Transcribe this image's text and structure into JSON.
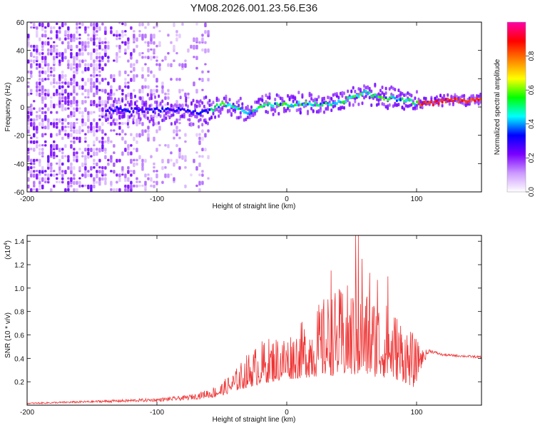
{
  "title": "YM08.2026.001.23.56.E36",
  "chart_data": [
    {
      "type": "heatmap",
      "xlabel": "Height of straight line (km)",
      "ylabel": "Frequency (Hz)",
      "xlim": [
        -200,
        150
      ],
      "ylim": [
        -60,
        60
      ],
      "xticks": [
        -200,
        -100,
        0,
        100
      ],
      "xtick_labels": [
        "-200",
        "-100",
        "0",
        "100"
      ],
      "yticks": [
        -60,
        -40,
        -20,
        0,
        20,
        40,
        60
      ],
      "ytick_labels": [
        "-60",
        "-40",
        "-20",
        "0",
        "20",
        "40",
        "60"
      ],
      "colorbar": {
        "label": "Normalized spectral amplitude",
        "range": [
          0,
          1
        ],
        "ticks": [
          0,
          0.2,
          0.4,
          0.6,
          0.8
        ],
        "tick_labels": [
          "0.0",
          "0.2",
          "0.4",
          "0.6",
          "0.8"
        ],
        "colors": [
          "#ffffff",
          "#cc99ff",
          "#7a00ff",
          "#0000ff",
          "#00ffff",
          "#00ff00",
          "#ffff00",
          "#ff8000",
          "#ff0000",
          "#ff00aa"
        ]
      },
      "ridge": {
        "x": [
          -130,
          -110,
          -90,
          -70,
          -60,
          -50,
          -40,
          -30,
          -20,
          -10,
          0,
          10,
          20,
          30,
          40,
          50,
          60,
          70,
          80,
          90,
          100,
          110,
          120,
          130,
          150
        ],
        "y": [
          -2,
          -3,
          -2,
          -4,
          -3,
          2,
          0,
          -5,
          0,
          1,
          1,
          2,
          2,
          1,
          3,
          6,
          10,
          6,
          6,
          4,
          2,
          2,
          4,
          4,
          4
        ]
      }
    },
    {
      "type": "line",
      "xlabel": "Height of straight line (km)",
      "ylabel": "SNR (10 * v/v)",
      "scale_label": "(x10",
      "scale_exponent": "4",
      "scale_close": ")",
      "xlim": [
        -200,
        150
      ],
      "ylim": [
        0,
        1.45
      ],
      "xticks": [
        -200,
        -100,
        0,
        100
      ],
      "xtick_labels": [
        "-200",
        "-100",
        "0",
        "100"
      ],
      "yticks": [
        0.2,
        0.4,
        0.6,
        0.8,
        1.0,
        1.2,
        1.4
      ],
      "ytick_labels": [
        "0.2",
        "0.4",
        "0.6",
        "0.8",
        "1.0",
        "1.2",
        "1.4"
      ],
      "color": "#ee3333",
      "envelope": {
        "x": [
          -200,
          -150,
          -100,
          -80,
          -70,
          -60,
          -50,
          -40,
          -30,
          -20,
          -10,
          0,
          10,
          20,
          30,
          40,
          50,
          60,
          70,
          80,
          90,
          98,
          105,
          110,
          120,
          150
        ],
        "base": [
          0.01,
          0.02,
          0.03,
          0.04,
          0.05,
          0.06,
          0.08,
          0.12,
          0.15,
          0.18,
          0.2,
          0.22,
          0.23,
          0.24,
          0.25,
          0.25,
          0.25,
          0.25,
          0.24,
          0.23,
          0.2,
          0.15,
          0.35,
          0.45,
          0.42,
          0.4
        ],
        "top": [
          0.02,
          0.04,
          0.06,
          0.08,
          0.1,
          0.14,
          0.2,
          0.3,
          0.45,
          0.55,
          0.6,
          0.62,
          0.7,
          0.8,
          0.95,
          1.0,
          1.05,
          1.0,
          0.95,
          0.85,
          0.75,
          0.6,
          0.47,
          0.48,
          0.44,
          0.42
        ]
      },
      "peaks": [
        {
          "x": 34,
          "y": 1.15
        },
        {
          "x": 53,
          "y": 1.45
        },
        {
          "x": 55,
          "y": 1.45
        },
        {
          "x": 58,
          "y": 1.25
        },
        {
          "x": 64,
          "y": 1.13
        },
        {
          "x": 70,
          "y": 1.07
        },
        {
          "x": 78,
          "y": 1.1
        }
      ]
    }
  ]
}
